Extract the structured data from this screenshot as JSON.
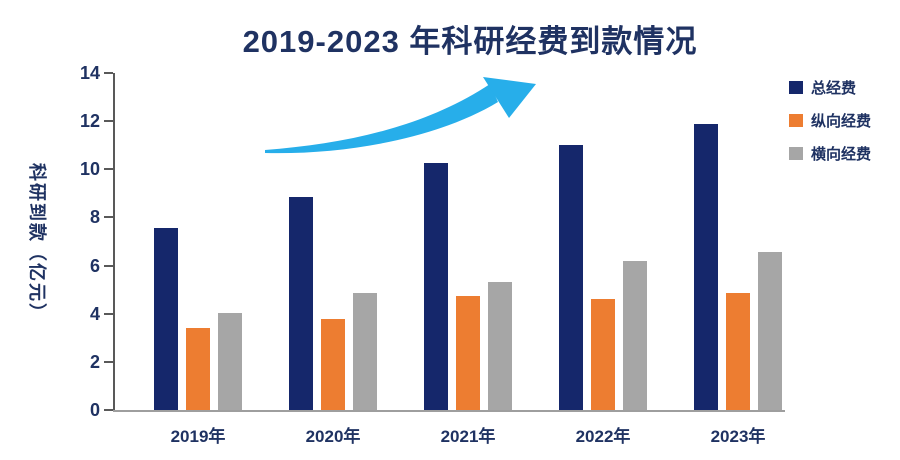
{
  "chart_data": {
    "type": "bar",
    "title": "2019-2023 年科研经费到款情况",
    "categories": [
      "2019年",
      "2020年",
      "2021年",
      "2022年",
      "2023年"
    ],
    "series": [
      {
        "name": "总经费",
        "color": "#15276B",
        "values": [
          7.55,
          8.85,
          10.25,
          11.0,
          11.9
        ]
      },
      {
        "name": "纵向经费",
        "color": "#ED7D31",
        "values": [
          3.4,
          3.8,
          4.75,
          4.6,
          4.85
        ]
      },
      {
        "name": "横向经费",
        "color": "#A6A6A6",
        "values": [
          4.05,
          4.85,
          5.3,
          6.2,
          6.55
        ]
      }
    ],
    "xlabel": "",
    "ylabel": "科研到款（亿元）",
    "ylim": [
      0,
      14
    ],
    "yticks": [
      0,
      2,
      4,
      6,
      8,
      10,
      12,
      14
    ],
    "grid": false,
    "legend_position": "right",
    "annotations": [
      "upward-trend-arrow"
    ]
  },
  "colors": {
    "title_text": "#1F3262",
    "axis_line_vertical": "#595959",
    "axis_line_horizontal": "#9E9E9E",
    "arrow": "#27AEEA"
  }
}
